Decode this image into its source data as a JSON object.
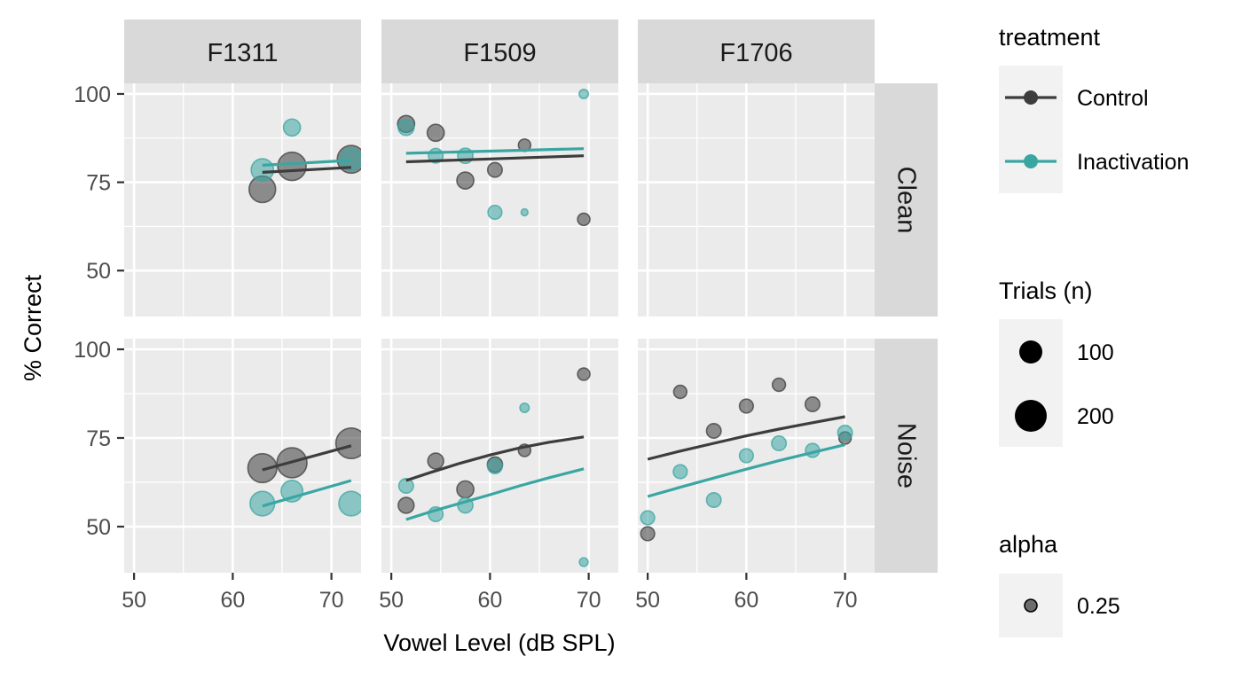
{
  "chart_data": {
    "type": "scatter",
    "xlabel": "Vowel Level (dB SPL)",
    "ylabel": "% Correct",
    "xlim": [
      49,
      73
    ],
    "ylim": [
      37,
      103
    ],
    "x_ticks": [
      50,
      60,
      70
    ],
    "y_ticks": [
      50,
      75,
      100
    ],
    "grid": true,
    "columns": [
      "F1311",
      "F1509",
      "F1706"
    ],
    "rows": [
      "Clean",
      "Noise"
    ],
    "colors": {
      "Control": "#3d3d3d",
      "Inactivation": "#3aa6a2"
    },
    "legend": {
      "position": "right",
      "treatment": {
        "title": "treatment",
        "entries": [
          "Control",
          "Inactivation"
        ]
      },
      "size": {
        "title": "Trials (n)",
        "entries": [
          {
            "label": "100",
            "value": 100
          },
          {
            "label": "200",
            "value": 200
          }
        ]
      },
      "alpha": {
        "title": "alpha",
        "entries": [
          {
            "label": "0.25",
            "value": 0.25
          }
        ]
      }
    },
    "panels": [
      {
        "column": "F1311",
        "row": "Clean",
        "points": [
          {
            "treatment": "Control",
            "x": 63,
            "y": 73,
            "n": 180
          },
          {
            "treatment": "Control",
            "x": 66,
            "y": 79.5,
            "n": 210
          },
          {
            "treatment": "Control",
            "x": 72,
            "y": 81.5,
            "n": 200
          },
          {
            "treatment": "Inactivation",
            "x": 63,
            "y": 78.5,
            "n": 120
          },
          {
            "treatment": "Inactivation",
            "x": 66,
            "y": 90.5,
            "n": 60
          },
          {
            "treatment": "Inactivation",
            "x": 72,
            "y": 81.5,
            "n": 120
          }
        ],
        "lines": [
          {
            "treatment": "Control",
            "x": [
              63,
              72
            ],
            "y": [
              77.8,
              79.2
            ]
          },
          {
            "treatment": "Inactivation",
            "x": [
              63,
              72
            ],
            "y": [
              79.8,
              81.2
            ]
          }
        ]
      },
      {
        "column": "F1509",
        "row": "Clean",
        "points": [
          {
            "treatment": "Control",
            "x": 51.5,
            "y": 91.5,
            "n": 60
          },
          {
            "treatment": "Control",
            "x": 54.5,
            "y": 89,
            "n": 60
          },
          {
            "treatment": "Control",
            "x": 57.5,
            "y": 75.5,
            "n": 60
          },
          {
            "treatment": "Control",
            "x": 60.5,
            "y": 78.5,
            "n": 40
          },
          {
            "treatment": "Control",
            "x": 63.5,
            "y": 85.5,
            "n": 25
          },
          {
            "treatment": "Control",
            "x": 69.5,
            "y": 64.5,
            "n": 25
          },
          {
            "treatment": "Inactivation",
            "x": 51.5,
            "y": 90.5,
            "n": 50
          },
          {
            "treatment": "Inactivation",
            "x": 54.5,
            "y": 82.5,
            "n": 40
          },
          {
            "treatment": "Inactivation",
            "x": 57.5,
            "y": 82.5,
            "n": 45
          },
          {
            "treatment": "Inactivation",
            "x": 60.5,
            "y": 66.5,
            "n": 35
          },
          {
            "treatment": "Inactivation",
            "x": 63.5,
            "y": 66.5,
            "n": 3
          },
          {
            "treatment": "Inactivation",
            "x": 69.5,
            "y": 100,
            "n": 10
          }
        ],
        "lines": [
          {
            "treatment": "Control",
            "x": [
              51.5,
              69.5
            ],
            "y": [
              80.8,
              82.5
            ]
          },
          {
            "treatment": "Inactivation",
            "x": [
              51.5,
              69.5
            ],
            "y": [
              83.2,
              84.5
            ]
          }
        ]
      },
      {
        "column": "F1706",
        "row": "Clean",
        "points": [],
        "lines": []
      },
      {
        "column": "F1311",
        "row": "Noise",
        "points": [
          {
            "treatment": "Control",
            "x": 63,
            "y": 66.5,
            "n": 220
          },
          {
            "treatment": "Control",
            "x": 66,
            "y": 68,
            "n": 240
          },
          {
            "treatment": "Control",
            "x": 72,
            "y": 73.5,
            "n": 250
          },
          {
            "treatment": "Inactivation",
            "x": 63,
            "y": 56.5,
            "n": 150
          },
          {
            "treatment": "Inactivation",
            "x": 66,
            "y": 60,
            "n": 110
          },
          {
            "treatment": "Inactivation",
            "x": 72,
            "y": 56.5,
            "n": 150
          }
        ],
        "lines": [
          {
            "treatment": "Control",
            "x": [
              63,
              72
            ],
            "y": [
              66,
              72.8
            ]
          },
          {
            "treatment": "Inactivation",
            "x": [
              63,
              72
            ],
            "y": [
              55.8,
              63
            ]
          }
        ]
      },
      {
        "column": "F1509",
        "row": "Noise",
        "points": [
          {
            "treatment": "Control",
            "x": 51.5,
            "y": 56,
            "n": 50
          },
          {
            "treatment": "Control",
            "x": 54.5,
            "y": 68.5,
            "n": 50
          },
          {
            "treatment": "Control",
            "x": 57.5,
            "y": 60.5,
            "n": 60
          },
          {
            "treatment": "Control",
            "x": 60.5,
            "y": 67.5,
            "n": 45
          },
          {
            "treatment": "Control",
            "x": 63.5,
            "y": 71.5,
            "n": 25
          },
          {
            "treatment": "Control",
            "x": 69.5,
            "y": 93,
            "n": 25
          },
          {
            "treatment": "Inactivation",
            "x": 51.5,
            "y": 61.5,
            "n": 40
          },
          {
            "treatment": "Inactivation",
            "x": 54.5,
            "y": 53.5,
            "n": 40
          },
          {
            "treatment": "Inactivation",
            "x": 57.5,
            "y": 56,
            "n": 45
          },
          {
            "treatment": "Inactivation",
            "x": 60.5,
            "y": 67,
            "n": 40
          },
          {
            "treatment": "Inactivation",
            "x": 63.5,
            "y": 83.5,
            "n": 10
          },
          {
            "treatment": "Inactivation",
            "x": 69.5,
            "y": 40,
            "n": 8
          }
        ],
        "lines": [
          {
            "treatment": "Control",
            "x": [
              51.5,
              54,
              57,
              60,
              63,
              66,
              69.5
            ],
            "y": [
              63,
              65.3,
              67.9,
              70.2,
              72.2,
              73.8,
              75.3
            ]
          },
          {
            "treatment": "Inactivation",
            "x": [
              51.5,
              54,
              57,
              60,
              63,
              66,
              69.5
            ],
            "y": [
              52,
              54.2,
              56.6,
              59.0,
              61.5,
              63.8,
              66.3
            ]
          }
        ]
      },
      {
        "column": "F1706",
        "row": "Noise",
        "points": [
          {
            "treatment": "Control",
            "x": 50,
            "y": 48,
            "n": 35
          },
          {
            "treatment": "Control",
            "x": 53.3,
            "y": 88,
            "n": 30
          },
          {
            "treatment": "Control",
            "x": 56.7,
            "y": 77,
            "n": 40
          },
          {
            "treatment": "Control",
            "x": 60,
            "y": 84,
            "n": 35
          },
          {
            "treatment": "Control",
            "x": 63.3,
            "y": 90,
            "n": 30
          },
          {
            "treatment": "Control",
            "x": 66.7,
            "y": 84.5,
            "n": 40
          },
          {
            "treatment": "Control",
            "x": 70,
            "y": 75,
            "n": 25
          },
          {
            "treatment": "Inactivation",
            "x": 50,
            "y": 52.5,
            "n": 35
          },
          {
            "treatment": "Inactivation",
            "x": 53.3,
            "y": 65.5,
            "n": 35
          },
          {
            "treatment": "Inactivation",
            "x": 56.7,
            "y": 57.5,
            "n": 40
          },
          {
            "treatment": "Inactivation",
            "x": 60,
            "y": 70,
            "n": 35
          },
          {
            "treatment": "Inactivation",
            "x": 63.3,
            "y": 73.5,
            "n": 40
          },
          {
            "treatment": "Inactivation",
            "x": 66.7,
            "y": 71.5,
            "n": 35
          },
          {
            "treatment": "Inactivation",
            "x": 70,
            "y": 76.5,
            "n": 40
          }
        ],
        "lines": [
          {
            "treatment": "Control",
            "x": [
              50,
              53.3,
              56.7,
              60,
              63.3,
              66.7,
              70
            ],
            "y": [
              69,
              71.3,
              73.5,
              75.6,
              77.5,
              79.3,
              81
            ]
          },
          {
            "treatment": "Inactivation",
            "x": [
              50,
              53.3,
              56.7,
              60,
              63.3,
              66.7,
              70
            ],
            "y": [
              58.5,
              61.1,
              63.7,
              66.2,
              68.6,
              70.9,
              73.1
            ]
          }
        ]
      }
    ]
  }
}
